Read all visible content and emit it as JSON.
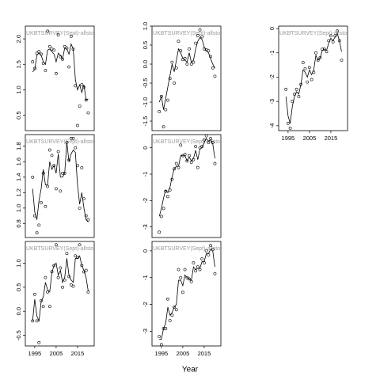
{
  "chart_data": {
    "type": "line",
    "x_label": "Year",
    "x": [
      1994,
      1995,
      1996,
      1997,
      1998,
      1999,
      2000,
      2001,
      2002,
      2003,
      2004,
      2005,
      2006,
      2007,
      2008,
      2009,
      2010,
      2011,
      2012,
      2013,
      2014,
      2015,
      2016,
      2017,
      2018,
      2019,
      2020
    ],
    "xlim": [
      1990.6,
      2022.8
    ],
    "xticks": [
      1995,
      2005,
      2015
    ],
    "panels": [
      {
        "title": "UKBTSURVEY(Sept)-allsto",
        "show_xticks": false,
        "ylim": [
          0.2,
          2.25
        ],
        "yticks": [
          0.5,
          {
            "value": 1,
            "label": "1.0"
          },
          1.5,
          {
            "value": 2,
            "label": "2.0"
          }
        ],
        "points": [
          1.55,
          1.42,
          1.72,
          1.75,
          1.7,
          1.52,
          1.38,
          2.15,
          1.85,
          1.8,
          1.78,
          1.32,
          2.08,
          1.65,
          1.6,
          1.85,
          1.82,
          1.45,
          2.05,
          1.8,
          1.08,
          0.3,
          0.68,
          1.1,
          1.05,
          0.8,
          0.55
        ],
        "line": [
          1.35,
          1.4,
          1.68,
          1.72,
          1.68,
          1.55,
          1.5,
          1.78,
          1.8,
          1.75,
          1.7,
          1.55,
          1.72,
          1.68,
          1.6,
          1.82,
          1.8,
          1.7,
          1.9,
          1.8,
          1.2,
          1.0,
          1.1,
          0.95,
          1.1,
          0.8,
          0.82
        ]
      },
      {
        "title": "UKBTSURVEY(Sept)-allsto",
        "show_xticks": false,
        "ylim": [
          -1.75,
          1.0
        ],
        "yticks": [
          -1.5,
          {
            "value": -1,
            "label": "-1.0"
          },
          -0.5,
          {
            "value": 0,
            "label": "0.0"
          },
          0.5,
          {
            "value": 1,
            "label": "1.0"
          }
        ],
        "points": [
          -1.25,
          -0.85,
          -1.65,
          -1.2,
          -0.95,
          -0.38,
          0.05,
          -0.5,
          -0.1,
          0.6,
          0.35,
          0.12,
          0.15,
          0.0,
          0.4,
          0.0,
          0.05,
          0.55,
          0.75,
          0.9,
          0.72,
          0.4,
          0.38,
          0.35,
          0.2,
          -0.1,
          -0.32
        ],
        "line": [
          -1.0,
          -0.85,
          -1.2,
          -0.9,
          -0.6,
          -0.3,
          0.0,
          -0.2,
          0.1,
          0.4,
          0.3,
          0.15,
          0.1,
          0.05,
          0.3,
          0.05,
          0.1,
          0.4,
          0.6,
          0.7,
          0.65,
          0.45,
          0.35,
          0.3,
          0.15,
          0.0,
          -0.1
        ]
      },
      {
        "title": "UKBTSURVEY(Sept)-allsto",
        "show_xticks": true,
        "ylim": [
          -4.2,
          0.1
        ],
        "yticks": [
          -4,
          -3,
          -2,
          -1,
          0
        ],
        "points": [
          -2.5,
          -3.9,
          -4.1,
          -3.0,
          -2.7,
          -2.5,
          -2.8,
          -2.3,
          -1.4,
          -1.65,
          -2.2,
          -1.6,
          -2.1,
          -1.8,
          -1.0,
          -1.3,
          -1.2,
          -0.85,
          -0.85,
          -0.95,
          -0.5,
          -0.3,
          -0.55,
          -0.3,
          -0.1,
          -0.5,
          -1.3
        ],
        "line": [
          -2.8,
          -3.6,
          -3.9,
          -3.2,
          -2.8,
          -2.6,
          -2.7,
          -2.3,
          -1.7,
          -1.8,
          -2.0,
          -1.7,
          -1.9,
          -1.7,
          -1.1,
          -1.3,
          -1.2,
          -0.9,
          -0.85,
          -0.9,
          -0.6,
          -0.4,
          -0.5,
          -0.35,
          -0.2,
          -0.5,
          -0.95
        ]
      },
      {
        "title": "UKBTSURVEY(Sept)-allsto",
        "show_xticks": false,
        "ylim": [
          0.62,
          1.95
        ],
        "yticks": [
          0.8,
          {
            "value": 1,
            "label": "1.0"
          },
          1.2,
          1.4,
          1.6,
          1.8
        ],
        "points": [
          1.4,
          0.9,
          0.68,
          0.78,
          1.07,
          1.45,
          1.02,
          1.28,
          1.75,
          1.68,
          1.55,
          1.25,
          1.73,
          1.22,
          1.45,
          1.45,
          1.85,
          1.62,
          1.9,
          1.9,
          1.78,
          1.55,
          1.0,
          1.52,
          1.12,
          0.9,
          0.85
        ],
        "line": [
          1.25,
          0.95,
          0.85,
          1.1,
          1.25,
          1.5,
          1.3,
          1.3,
          1.6,
          1.5,
          1.55,
          1.45,
          1.7,
          1.4,
          1.4,
          1.45,
          1.85,
          1.6,
          1.7,
          1.75,
          1.72,
          1.3,
          1.05,
          1.2,
          1.0,
          0.85,
          0.82
        ]
      },
      {
        "title": "UKBTSURVEY(Sept)-allsto",
        "show_xticks": false,
        "ylim": [
          -3.4,
          0.5
        ],
        "yticks": [
          -3,
          -2,
          -1,
          0
        ],
        "points": [
          -3.2,
          -2.6,
          -2.3,
          -1.65,
          -1.85,
          -1.6,
          -1.2,
          -0.8,
          -0.6,
          -0.75,
          0.1,
          -0.3,
          -0.25,
          -0.5,
          -0.3,
          -0.55,
          -0.45,
          0.05,
          -0.75,
          0.0,
          0.05,
          0.3,
          0.45,
          0.2,
          0.35,
          0.2,
          -0.6
        ],
        "line": [
          -2.6,
          -2.3,
          -1.9,
          -1.6,
          -1.7,
          -1.5,
          -1.1,
          -0.8,
          -0.7,
          -0.7,
          -0.3,
          -0.3,
          -0.3,
          -0.5,
          -0.35,
          -0.5,
          -0.4,
          -0.1,
          -0.45,
          -0.05,
          0.0,
          0.2,
          0.35,
          0.25,
          0.3,
          0.15,
          -0.4
        ]
      },
      {
        "title": "UKBTSURVEY(Sept)-allsto",
        "show_xticks": true,
        "ylim": [
          -0.72,
          1.45
        ],
        "yticks": [
          -0.5,
          {
            "value": 0,
            "label": "0.0"
          },
          0.5,
          {
            "value": 1,
            "label": "1.0"
          }
        ],
        "points": [
          -0.2,
          0.35,
          -0.2,
          -0.65,
          0.22,
          0.1,
          0.7,
          0.4,
          0.1,
          0.82,
          0.95,
          1.38,
          0.7,
          0.9,
          0.5,
          0.65,
          1.2,
          0.72,
          0.55,
          0.52,
          1.15,
          1.12,
          1.38,
          0.95,
          0.82,
          0.85,
          0.4
        ],
        "line": [
          -0.2,
          0.25,
          -0.1,
          -0.2,
          0.2,
          0.3,
          0.6,
          0.45,
          0.4,
          0.8,
          0.95,
          1.0,
          0.75,
          0.85,
          0.6,
          0.7,
          1.1,
          0.75,
          0.65,
          0.6,
          1.1,
          1.1,
          1.15,
          0.95,
          0.85,
          0.7,
          0.42
        ]
      },
      {
        "title": "UKBTSURVEY(Sept)-allsto",
        "show_xticks": true,
        "ylim": [
          -3.55,
          0.35
        ],
        "yticks": [
          -3,
          -2,
          -1,
          0
        ],
        "points": [
          -3.2,
          -3.5,
          -2.9,
          -2.9,
          -1.8,
          -2.6,
          -2.4,
          -2.1,
          -2.2,
          -0.7,
          -1.0,
          -1.55,
          -0.7,
          -1.0,
          -1.05,
          -1.15,
          -0.45,
          -0.75,
          -0.6,
          -0.7,
          -0.3,
          -0.45,
          0.0,
          -0.15,
          0.2,
          0.05,
          -0.85
        ],
        "line": [
          -3.3,
          -3.3,
          -2.9,
          -2.7,
          -2.1,
          -2.4,
          -2.3,
          -2.1,
          -2.0,
          -1.1,
          -1.1,
          -1.3,
          -0.9,
          -1.0,
          -1.05,
          -1.1,
          -0.6,
          -0.7,
          -0.65,
          -0.65,
          -0.4,
          -0.4,
          -0.1,
          -0.1,
          0.05,
          0.0,
          -0.6
        ]
      }
    ]
  }
}
